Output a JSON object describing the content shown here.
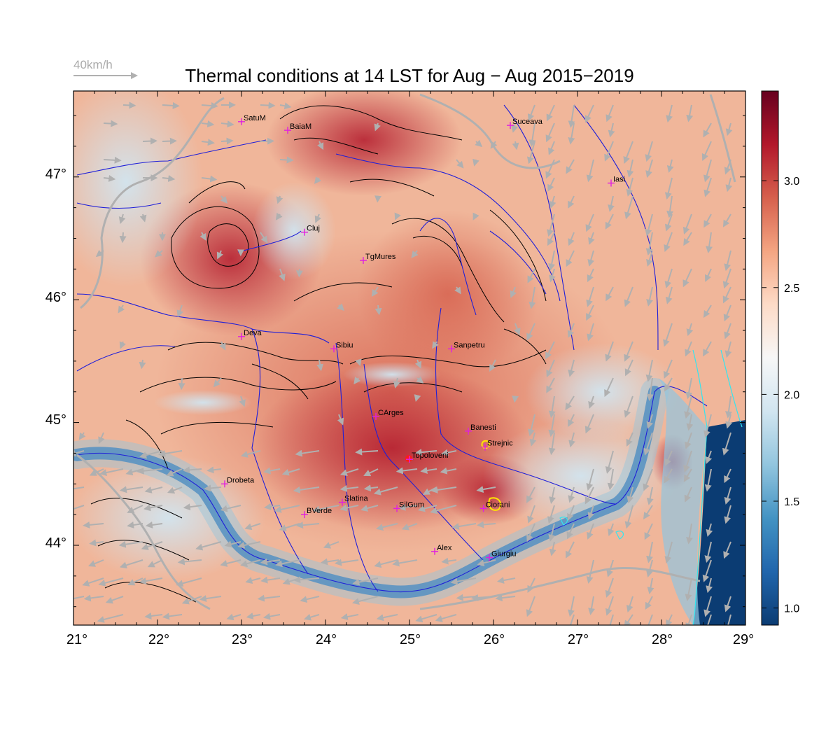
{
  "title": "Thermal conditions at 14 LST for Aug − Aug  2015−2019",
  "wind_reference": {
    "label": "40km/h"
  },
  "x_ticks": [
    "21°",
    "22°",
    "23°",
    "24°",
    "25°",
    "26°",
    "27°",
    "28°",
    "29°"
  ],
  "y_ticks": [
    "47°",
    "46°",
    "45°",
    "44°"
  ],
  "colorbar": {
    "ticks": [
      "3.0",
      "2.5",
      "2.0",
      "1.5",
      "1.0"
    ],
    "min": 0.92,
    "max": 3.42,
    "colors": [
      "#0b3c73",
      "#2166ac",
      "#4393c3",
      "#92c5de",
      "#d1e5f0",
      "#f7f7f7",
      "#fddbc7",
      "#f4a582",
      "#d6604d",
      "#b2182b",
      "#67001f"
    ]
  },
  "cities": [
    {
      "name": "SatuM",
      "lon": 23.0,
      "lat": 47.45
    },
    {
      "name": "BaiaM",
      "lon": 23.55,
      "lat": 47.38
    },
    {
      "name": "Suceava",
      "lon": 26.2,
      "lat": 47.42
    },
    {
      "name": "Iasi",
      "lon": 27.4,
      "lat": 46.95
    },
    {
      "name": "Cluj",
      "lon": 23.75,
      "lat": 46.55
    },
    {
      "name": "TgMures",
      "lon": 24.45,
      "lat": 46.32
    },
    {
      "name": "Deva",
      "lon": 23.0,
      "lat": 45.7
    },
    {
      "name": "Sibiu",
      "lon": 24.1,
      "lat": 45.6
    },
    {
      "name": "Sanpetru",
      "lon": 25.5,
      "lat": 45.6
    },
    {
      "name": "CArges",
      "lon": 24.6,
      "lat": 45.05
    },
    {
      "name": "Banesti",
      "lon": 25.7,
      "lat": 44.93
    },
    {
      "name": "Strejnic",
      "lon": 25.9,
      "lat": 44.8
    },
    {
      "name": "Topoloveni",
      "lon": 25.0,
      "lat": 44.7
    },
    {
      "name": "Drobeta",
      "lon": 22.8,
      "lat": 44.5
    },
    {
      "name": "Slatina",
      "lon": 24.2,
      "lat": 44.35
    },
    {
      "name": "SilGum",
      "lon": 24.85,
      "lat": 44.3
    },
    {
      "name": "Ciorani",
      "lon": 25.88,
      "lat": 44.3
    },
    {
      "name": "BVerde",
      "lon": 23.75,
      "lat": 44.25
    },
    {
      "name": "Alex",
      "lon": 25.3,
      "lat": 43.95
    },
    {
      "name": "Giurgiu",
      "lon": 25.95,
      "lat": 43.9
    }
  ]
}
